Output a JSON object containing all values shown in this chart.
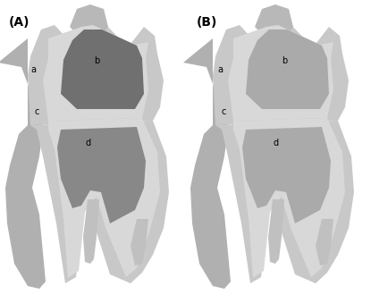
{
  "background_color": "#ffffff",
  "label_A": "(A)",
  "label_B": "(B)",
  "label_a": "a",
  "label_b": "b",
  "label_c": "c",
  "label_d": "d",
  "figsize": [
    4.15,
    3.39
  ],
  "dpi": 100,
  "c_left_shadow": "#b0b0b0",
  "c_outer_front": "#c8c8c8",
  "c_inner_dentin": "#d8d8d8",
  "c_pulp_A_upper": "#707070",
  "c_pulp_A_lower": "#888888",
  "c_pulp_B_upper": "#aaaaaa",
  "c_pulp_B_lower": "#aaaaaa",
  "c_cusp_top": "#b8b8b8",
  "c_root_canal": "#c0c0c0",
  "c_right_side": "#b8b8b8"
}
